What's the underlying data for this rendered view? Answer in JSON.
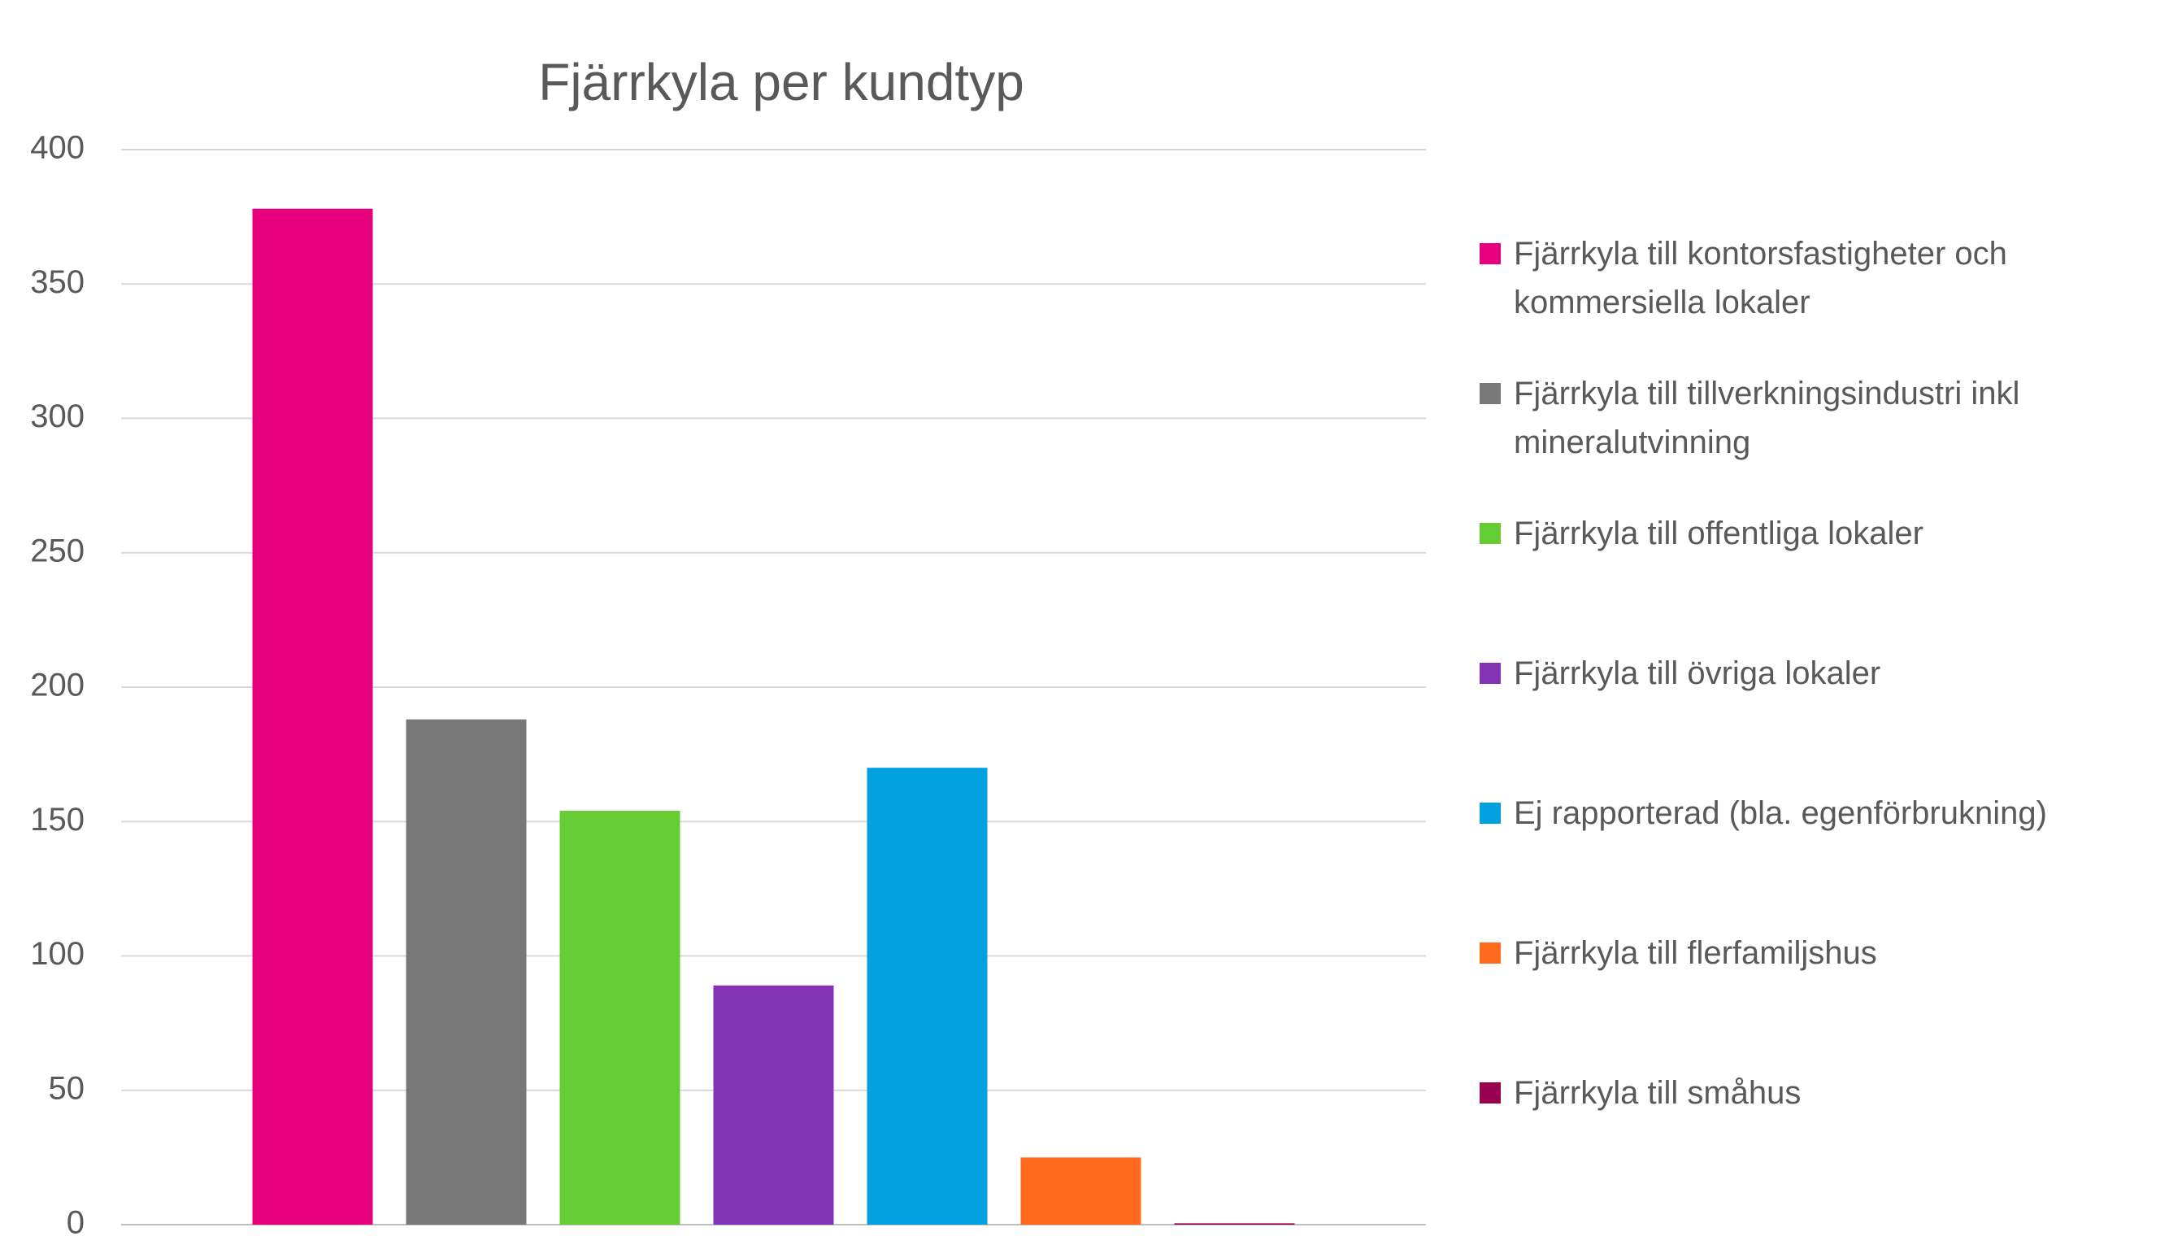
{
  "chart_data": {
    "type": "bar",
    "title": "Fjärrkyla per kundtyp",
    "categories": [
      null
    ],
    "series": [
      {
        "name": "Fjärrkyla till kontorsfastigheter och kommersiella lokaler",
        "color": "#e6007e",
        "values": [
          378
        ]
      },
      {
        "name": "Fjärrkyla till tillverkningsindustri inkl mineralutvinning",
        "color": "#787878",
        "values": [
          188
        ]
      },
      {
        "name": "Fjärrkyla till offentliga lokaler",
        "color": "#66cc33",
        "values": [
          154
        ]
      },
      {
        "name": "Fjärrkyla till övriga lokaler",
        "color": "#8533b5",
        "values": [
          89
        ]
      },
      {
        "name": "Ej rapporterad (bla. egenförbrukning)",
        "color": "#00a0e1",
        "values": [
          170
        ]
      },
      {
        "name": "Fjärrkyla till flerfamiljshus",
        "color": "#ff6a1f",
        "values": [
          25
        ]
      },
      {
        "name": "Fjärrkyla till småhus",
        "color": "#99004d",
        "values": [
          0.5
        ]
      }
    ],
    "ylim": [
      0,
      400
    ],
    "yticks": [
      0,
      50,
      100,
      150,
      200,
      250,
      300,
      350,
      400
    ],
    "grid": true,
    "legend": "right"
  }
}
